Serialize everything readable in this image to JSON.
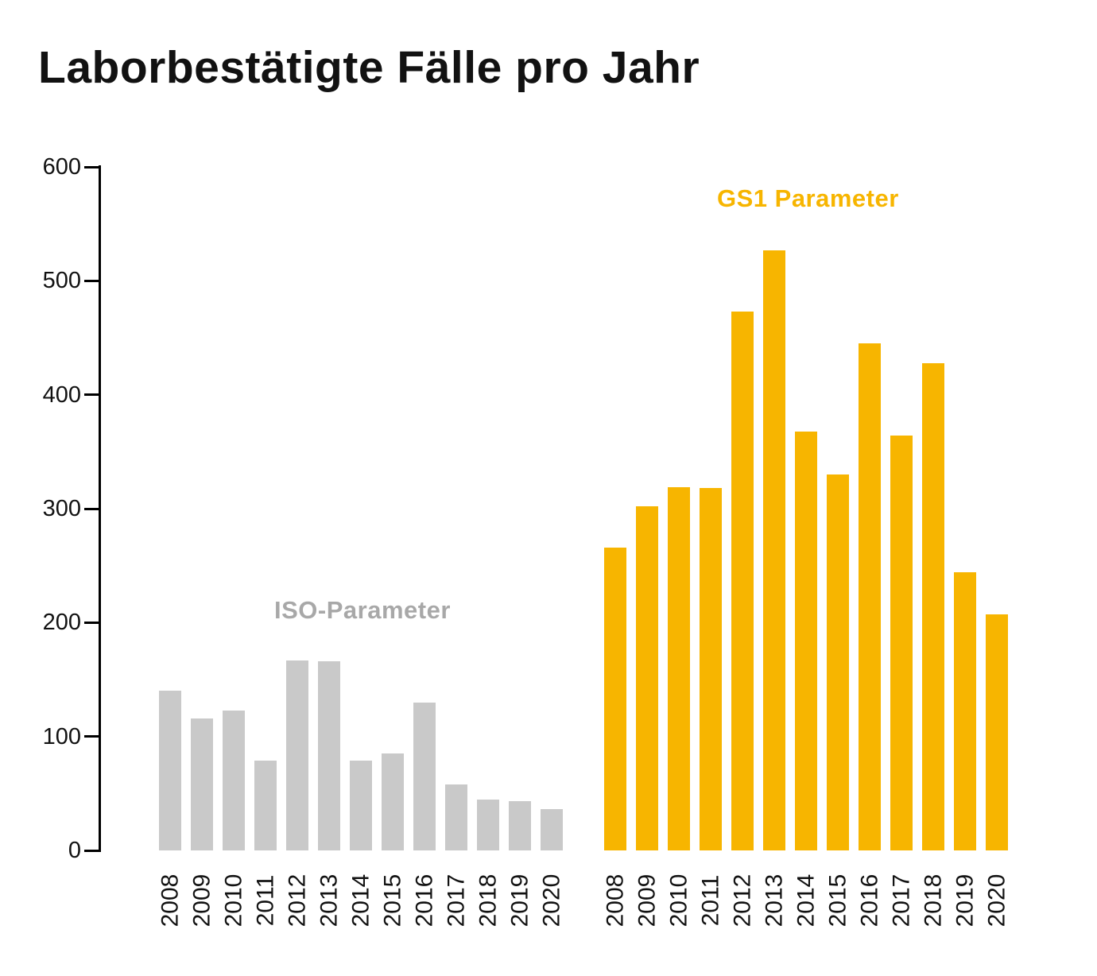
{
  "title": "Laborbestätigte Fälle pro Jahr",
  "colors": {
    "iso_bar": "#c9c9c9",
    "gs1_bar": "#f7b500",
    "iso_label": "#a8a8a8",
    "gs1_label": "#f7b500",
    "axis": "#000000",
    "text": "#121212",
    "background": "#ffffff"
  },
  "chart_data": {
    "type": "bar",
    "title": "Laborbestätigte Fälle pro Jahr",
    "xlabel": "",
    "ylabel": "",
    "ylim": [
      0,
      600
    ],
    "yticks": [
      0,
      100,
      200,
      300,
      400,
      500,
      600
    ],
    "grid": false,
    "legend_position": "inline-labels",
    "categories": [
      "2008",
      "2009",
      "2010",
      "2011",
      "2012",
      "2013",
      "2014",
      "2015",
      "2016",
      "2017",
      "2018",
      "2019",
      "2020"
    ],
    "series": [
      {
        "name": "ISO-Parameter",
        "key": "iso",
        "color": "#c9c9c9",
        "values": [
          140,
          116,
          123,
          79,
          167,
          166,
          79,
          85,
          130,
          58,
          45,
          43,
          36
        ]
      },
      {
        "name": "GS1 Parameter",
        "key": "gs1",
        "color": "#f7b500",
        "values": [
          266,
          302,
          319,
          318,
          473,
          527,
          368,
          330,
          445,
          364,
          428,
          244,
          207
        ]
      }
    ]
  }
}
